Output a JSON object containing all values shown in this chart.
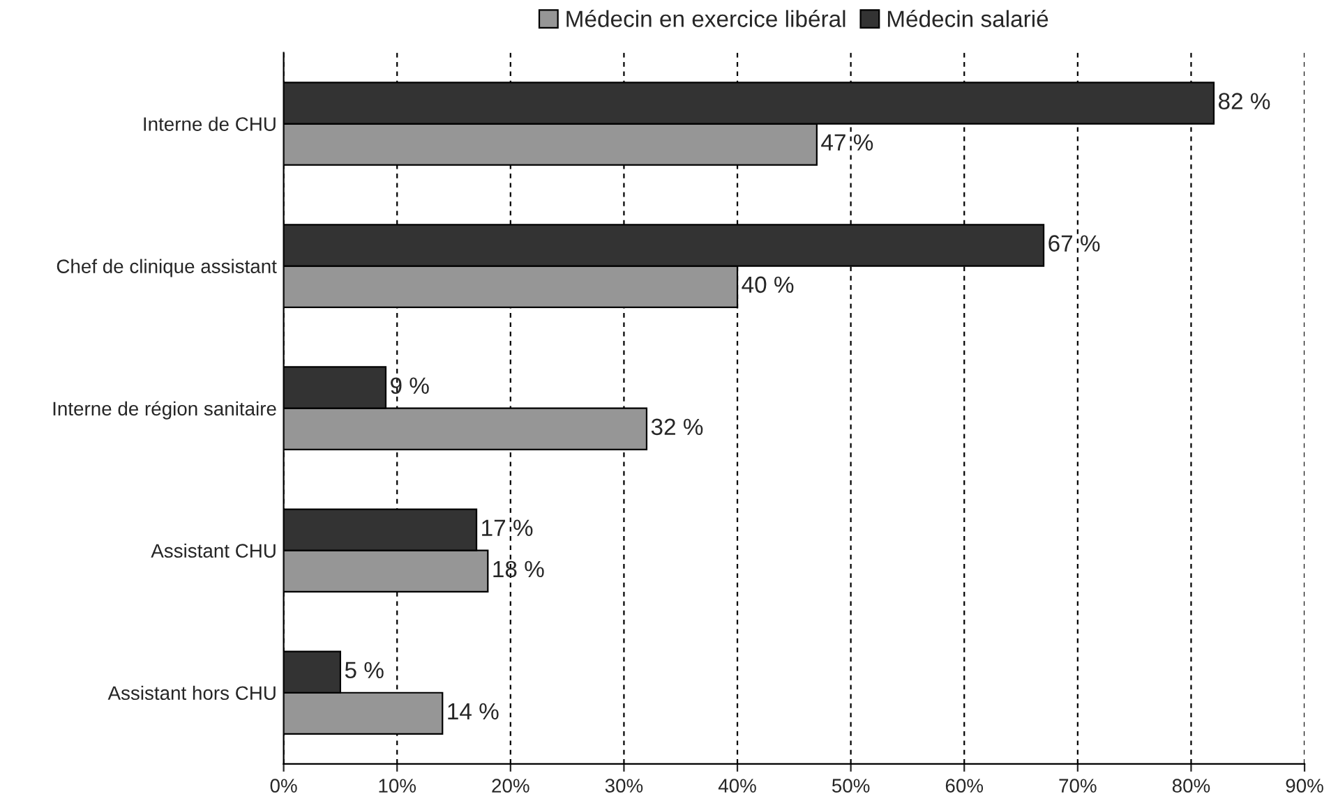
{
  "chart_data": {
    "type": "bar",
    "orientation": "horizontal",
    "categories": [
      "Interne de CHU",
      "Chef de clinique assistant",
      "Interne de région sanitaire",
      "Assistant CHU",
      "Assistant hors CHU"
    ],
    "series": [
      {
        "name": "Médecin en exercice libéral",
        "color": "#969696",
        "values": [
          47,
          40,
          32,
          18,
          14
        ],
        "value_labels": [
          "47 %",
          "40 %",
          "32 %",
          "18 %",
          "14 %"
        ]
      },
      {
        "name": "Médecin salarié",
        "color": "#333333",
        "values": [
          82,
          67,
          9,
          17,
          5
        ],
        "value_labels": [
          "82 %",
          "67 %",
          "9 %",
          "17 %",
          "5 %"
        ]
      }
    ],
    "xlim": [
      0,
      90
    ],
    "xticks": [
      {
        "value": 0,
        "label": "0%"
      },
      {
        "value": 10,
        "label": "10%"
      },
      {
        "value": 20,
        "label": "20%"
      },
      {
        "value": 30,
        "label": "30%"
      },
      {
        "value": 40,
        "label": "40%"
      },
      {
        "value": 50,
        "label": "50%"
      },
      {
        "value": 60,
        "label": "60%"
      },
      {
        "value": 70,
        "label": "70%"
      },
      {
        "value": 80,
        "label": "80%"
      },
      {
        "value": 90,
        "label": "90%"
      }
    ],
    "grid": "x",
    "legend": "top"
  }
}
